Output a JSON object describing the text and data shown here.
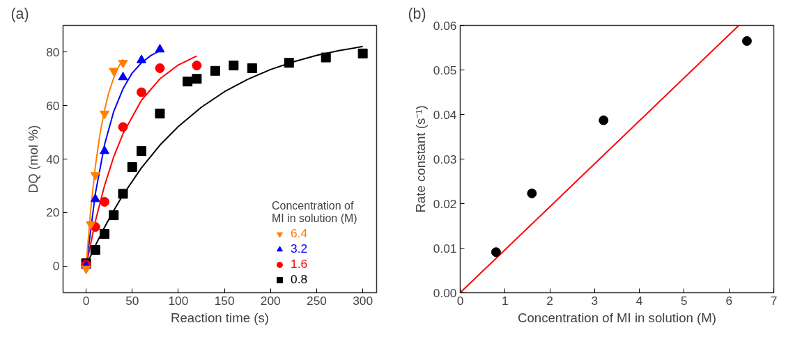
{
  "chart_data": [
    {
      "type": "scatter",
      "title": "(a)",
      "xlabel": "Reaction time (s)",
      "ylabel": "DQ (mol %)",
      "legend_title": "Concentration of\nMI in solution (M)",
      "legend": "bottom right",
      "grid": false,
      "xlim": [
        -25,
        315
      ],
      "xticks": [
        0,
        50,
        100,
        150,
        200,
        250,
        300
      ],
      "ylim": [
        -10,
        90
      ],
      "yticks": [
        0,
        20,
        40,
        60,
        80
      ],
      "series": [
        {
          "name": "6.4",
          "color": "#ff8000",
          "marker": "triangle_down",
          "x": [
            0,
            5,
            10,
            20,
            30,
            40
          ],
          "values": [
            -1,
            15.6,
            34,
            57,
            73,
            76
          ]
        },
        {
          "name": "3.2",
          "color": "#0000ff",
          "marker": "triangle",
          "x": [
            0,
            10,
            20,
            40,
            60,
            80
          ],
          "values": [
            0,
            25,
            43,
            70.6,
            77,
            81
          ]
        },
        {
          "name": "1.6",
          "color": "#ff0000",
          "marker": "circle",
          "x": [
            0,
            10,
            20,
            40,
            60,
            80,
            120
          ],
          "values": [
            0.5,
            14.6,
            24,
            52,
            65,
            74,
            75
          ]
        },
        {
          "name": "0.8",
          "color": "#000000",
          "marker": "square",
          "x": [
            0,
            10,
            20,
            30,
            40,
            50,
            60,
            80,
            110,
            120,
            140,
            160,
            180,
            220,
            260,
            300
          ],
          "values": [
            1,
            6,
            12,
            19,
            27,
            37,
            43,
            57,
            69,
            70,
            73,
            75,
            74,
            76,
            78,
            79.5
          ]
        },
        {
          "type": "line",
          "color": "#ff8000",
          "marker": "none",
          "x": [
            0,
            5,
            10,
            15,
            20,
            25,
            30,
            35,
            40
          ],
          "values": [
            0,
            21.2,
            37.2,
            49.3,
            58.4,
            65.3,
            70.4,
            74.4,
            77.3
          ]
        },
        {
          "type": "line",
          "color": "#0000ff",
          "marker": "none",
          "x": [
            0,
            10,
            20,
            30,
            40,
            50,
            60,
            70,
            80
          ],
          "values": [
            0,
            27,
            45.4,
            57.9,
            66.3,
            72.2,
            76,
            78.7,
            80.5
          ]
        },
        {
          "type": "line",
          "color": "#ff0000",
          "marker": "none",
          "x": [
            0,
            10,
            20,
            30,
            40,
            60,
            80,
            100,
            120
          ],
          "values": [
            0,
            16.7,
            30.1,
            40.9,
            49.5,
            62,
            70,
            75.2,
            78.6
          ]
        },
        {
          "type": "line",
          "color": "#000000",
          "marker": "none",
          "x": [
            0,
            10,
            20,
            30,
            40,
            60,
            80,
            100,
            125,
            150,
            175,
            200,
            225,
            250,
            275,
            300
          ],
          "values": [
            0,
            7.6,
            14.5,
            20.8,
            26.6,
            36.7,
            45.2,
            52.2,
            59.4,
            65.2,
            69.8,
            73.5,
            76.4,
            78.8,
            80.6,
            82.1
          ]
        }
      ]
    },
    {
      "type": "scatter",
      "title": "(b)",
      "xlabel": "Concentration of MI in solution (M)",
      "ylabel": "Rate constant (s⁻¹)",
      "grid": false,
      "xlim": [
        0,
        7
      ],
      "xticks": [
        0,
        1,
        2,
        3,
        4,
        5,
        6,
        7
      ],
      "ylim": [
        0,
        0.06
      ],
      "yticks": [
        {
          "value": 0,
          "label": "0.00"
        },
        {
          "value": 0.01,
          "label": "0.01"
        },
        {
          "value": 0.02,
          "label": "0.02"
        },
        {
          "value": 0.03,
          "label": "0.03"
        },
        {
          "value": 0.04,
          "label": "0.04"
        },
        {
          "value": 0.05,
          "label": "0.05"
        },
        {
          "value": 0.06,
          "label": "0.06"
        }
      ],
      "series": [
        {
          "color": "#000000",
          "marker": "circle",
          "x": [
            0.8,
            1.6,
            3.2,
            6.4
          ],
          "values": [
            0.0091,
            0.0223,
            0.0387,
            0.0565
          ]
        },
        {
          "type": "line",
          "color": "#ff0000",
          "marker": "none",
          "x": [
            0,
            6.22
          ],
          "values": [
            0,
            0.06
          ]
        }
      ]
    }
  ]
}
